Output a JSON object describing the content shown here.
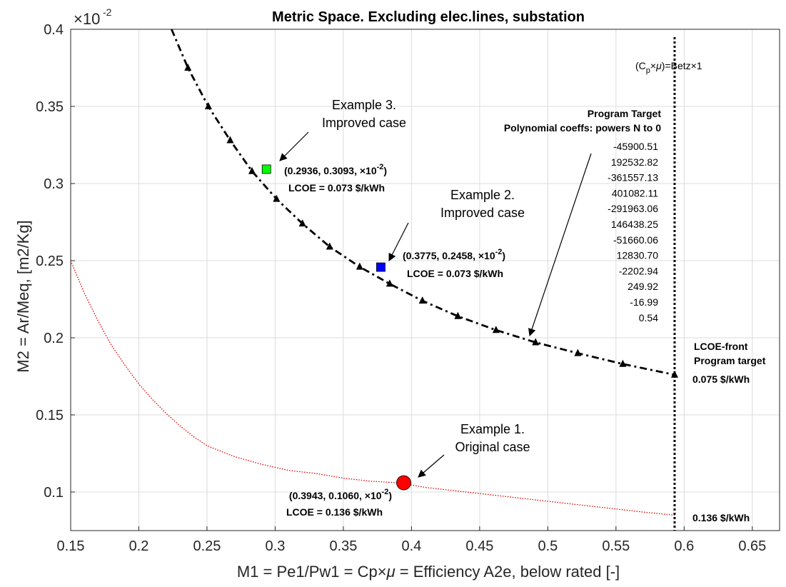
{
  "chart_data": {
    "type": "line",
    "title": "Metric Space. Excluding elec.lines, substation",
    "xlabel": "M1 = Pe1/Pw1 = Cp×μ = Efficiency A2e, below rated [-]",
    "ylabel": "M2 = Ar/Meq, [m2/Kg]",
    "y_exponent_label": "×10⁻²",
    "xlim": [
      0.15,
      0.67
    ],
    "ylim": [
      0.075,
      0.4
    ],
    "grid": true,
    "x_ticks": [
      "0.15",
      "0.2",
      "0.25",
      "0.3",
      "0.35",
      "0.4",
      "0.45",
      "0.5",
      "0.55",
      "0.6",
      "0.65"
    ],
    "y_ticks": [
      "0.1",
      "0.15",
      "0.2",
      "0.25",
      "0.3",
      "0.35",
      "0.4"
    ],
    "series": [
      {
        "name": "LCOE-front Program target",
        "color": "#000000",
        "style": "dash-dot",
        "marker": "triangle",
        "x": [
          0.224,
          0.236,
          0.251,
          0.267,
          0.283,
          0.301,
          0.32,
          0.34,
          0.362,
          0.384,
          0.408,
          0.434,
          0.462,
          0.491,
          0.522,
          0.555,
          0.593
        ],
        "y": [
          0.4,
          0.375,
          0.35,
          0.328,
          0.308,
          0.29,
          0.274,
          0.259,
          0.246,
          0.235,
          0.224,
          0.214,
          0.205,
          0.197,
          0.19,
          0.183,
          0.176
        ]
      },
      {
        "name": "0.136 $/kWh",
        "color": "#e00000",
        "style": "dotted",
        "x": [
          0.15,
          0.16,
          0.17,
          0.18,
          0.19,
          0.2,
          0.21,
          0.22,
          0.23,
          0.24,
          0.25,
          0.27,
          0.29,
          0.31,
          0.33,
          0.35,
          0.37,
          0.39,
          0.41,
          0.43,
          0.45,
          0.47,
          0.49,
          0.51,
          0.53,
          0.55,
          0.57,
          0.593
        ],
        "y": [
          0.25,
          0.229,
          0.211,
          0.195,
          0.182,
          0.17,
          0.16,
          0.151,
          0.143,
          0.136,
          0.13,
          0.123,
          0.118,
          0.114,
          0.112,
          0.109,
          0.107,
          0.106,
          0.103,
          0.101,
          0.099,
          0.097,
          0.095,
          0.093,
          0.091,
          0.089,
          0.087,
          0.085
        ]
      }
    ],
    "points": [
      {
        "label": "Example 1. Original case",
        "x": 0.3943,
        "y": 0.106,
        "color": "#ff0000",
        "shape": "circle",
        "coord_text": "(0.3943, 0.1060",
        "lcoe_text": "LCOE = 0.136 $/kWh"
      },
      {
        "label": "Example 2. Improved case",
        "x": 0.3775,
        "y": 0.2458,
        "color": "#0000ff",
        "shape": "square",
        "coord_text": "(0.3775, 0.2458",
        "lcoe_text": "LCOE = 0.073 $/kWh"
      },
      {
        "label": "Example 3. Improved case",
        "x": 0.2936,
        "y": 0.3093,
        "color": "#00ff00",
        "shape": "square",
        "coord_text": "(0.2936, 0.3093",
        "lcoe_text": "LCOE = 0.073 $/kWh"
      }
    ],
    "vertical_line": {
      "x": 0.593,
      "label": "(C_p×μ)=Betz×1"
    },
    "annotations": {
      "ex1_line1": "Example 1.",
      "ex1_line2": "Original case",
      "ex2_line1": "Example 2.",
      "ex2_line2": "Improved case",
      "ex3_line1": "Example 3.",
      "ex3_line2": "Improved case",
      "coord_suffix": "×10",
      "coord_exp": "-2",
      "front_line1": "LCOE-front",
      "front_line2": "Program target",
      "front_value": "0.075 $/kWh",
      "red_value": "0.136 $/kWh",
      "poly_title1": "Program Target",
      "poly_title2": "Polynomial coeffs: powers N to 0",
      "poly_coeffs": [
        "-45900.51",
        "192532.82",
        "-361557.13",
        "401082.11",
        "-291963.06",
        "146438.25",
        "-51660.06",
        "12830.70",
        "-2202.94",
        "249.92",
        "-16.99",
        "0.54"
      ]
    }
  }
}
